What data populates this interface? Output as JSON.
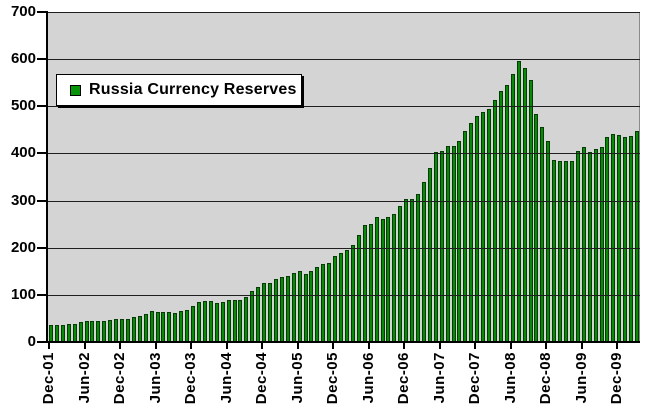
{
  "chart_data": {
    "type": "bar",
    "title": "",
    "series_name": "Russia Currency Reserves",
    "legend_position": "top-left-inside",
    "grid": true,
    "ylim": [
      0,
      700
    ],
    "y_ticks": [
      0,
      100,
      200,
      300,
      400,
      500,
      600,
      700
    ],
    "y_tick_labels": [
      "0",
      "100",
      "200",
      "300",
      "400",
      "500",
      "600",
      "700"
    ],
    "x_tick_labels": [
      "Dec-01",
      "Jun-02",
      "Dec-02",
      "Jun-03",
      "Dec-03",
      "Jun-04",
      "Dec-04",
      "Jun-05",
      "Dec-05",
      "Jun-06",
      "Dec-06",
      "Jun-07",
      "Dec-07",
      "Jun-08",
      "Dec-08",
      "Jun-09",
      "Dec-09"
    ],
    "x_tick_interval_months": 6,
    "categories": [
      "Dec-01",
      "Jan-02",
      "Feb-02",
      "Mar-02",
      "Apr-02",
      "May-02",
      "Jun-02",
      "Jul-02",
      "Aug-02",
      "Sep-02",
      "Oct-02",
      "Nov-02",
      "Dec-02",
      "Jan-03",
      "Feb-03",
      "Mar-03",
      "Apr-03",
      "May-03",
      "Jun-03",
      "Jul-03",
      "Aug-03",
      "Sep-03",
      "Oct-03",
      "Nov-03",
      "Dec-03",
      "Jan-04",
      "Feb-04",
      "Mar-04",
      "Apr-04",
      "May-04",
      "Jun-04",
      "Jul-04",
      "Aug-04",
      "Sep-04",
      "Oct-04",
      "Nov-04",
      "Dec-04",
      "Jan-05",
      "Feb-05",
      "Mar-05",
      "Apr-05",
      "May-05",
      "Jun-05",
      "Jul-05",
      "Aug-05",
      "Sep-05",
      "Oct-05",
      "Nov-05",
      "Dec-05",
      "Jan-06",
      "Feb-06",
      "Mar-06",
      "Apr-06",
      "May-06",
      "Jun-06",
      "Jul-06",
      "Aug-06",
      "Sep-06",
      "Oct-06",
      "Nov-06",
      "Dec-06",
      "Jan-07",
      "Feb-07",
      "Mar-07",
      "Apr-07",
      "May-07",
      "Jun-07",
      "Jul-07",
      "Aug-07",
      "Sep-07",
      "Oct-07",
      "Nov-07",
      "Dec-07",
      "Jan-08",
      "Feb-08",
      "Mar-08",
      "Apr-08",
      "May-08",
      "Jun-08",
      "Jul-08",
      "Aug-08",
      "Sep-08",
      "Oct-08",
      "Nov-08",
      "Dec-08",
      "Jan-09",
      "Feb-09",
      "Mar-09",
      "Apr-09",
      "May-09",
      "Jun-09",
      "Jul-09",
      "Aug-09",
      "Sep-09",
      "Oct-09",
      "Nov-09",
      "Dec-09",
      "Jan-10",
      "Feb-10",
      "Mar-10"
    ],
    "values": [
      36.6,
      36.4,
      36.9,
      37.3,
      38.8,
      42.2,
      43.6,
      44.1,
      44.6,
      45.6,
      46.8,
      48.2,
      47.8,
      49.3,
      53.1,
      55.5,
      59.9,
      64.9,
      64.4,
      64.4,
      62.7,
      62.1,
      64.9,
      68.2,
      76.9,
      84.6,
      86.3,
      86.3,
      82.7,
      85.6,
      88.2,
      88.6,
      89.6,
      95.0,
      107.3,
      117.4,
      124.5,
      124.9,
      134.2,
      137.4,
      139.6,
      147.4,
      151.6,
      144.9,
      149.8,
      159.6,
      164.9,
      168.4,
      182.2,
      188.5,
      195.9,
      205.9,
      226.4,
      247.3,
      250.6,
      265.7,
      260.4,
      266.2,
      272.5,
      289.0,
      303.7,
      303.9,
      314.5,
      338.8,
      369.1,
      403.2,
      405.8,
      416.2,
      414.7,
      425.4,
      447.0,
      463.5,
      478.8,
      488.4,
      494.9,
      512.6,
      532.5,
      546.0,
      568.3,
      596.6,
      582.2,
      556.1,
      484.6,
      455.7,
      427.1,
      386.9,
      384.1,
      383.9,
      383.8,
      404.2,
      412.6,
      402.8,
      409.6,
      413.4,
      434.4,
      441.7,
      439.0,
      435.8,
      436.3,
      447.0
    ],
    "colors": {
      "bar_fill": "#088a08",
      "bar_border": "#033d03",
      "plot_background": "#d4d4d4",
      "gridline": "#1f1f1f",
      "axis": "#000000",
      "chart_background": "#ffffff",
      "legend_marker": "#089408"
    }
  }
}
